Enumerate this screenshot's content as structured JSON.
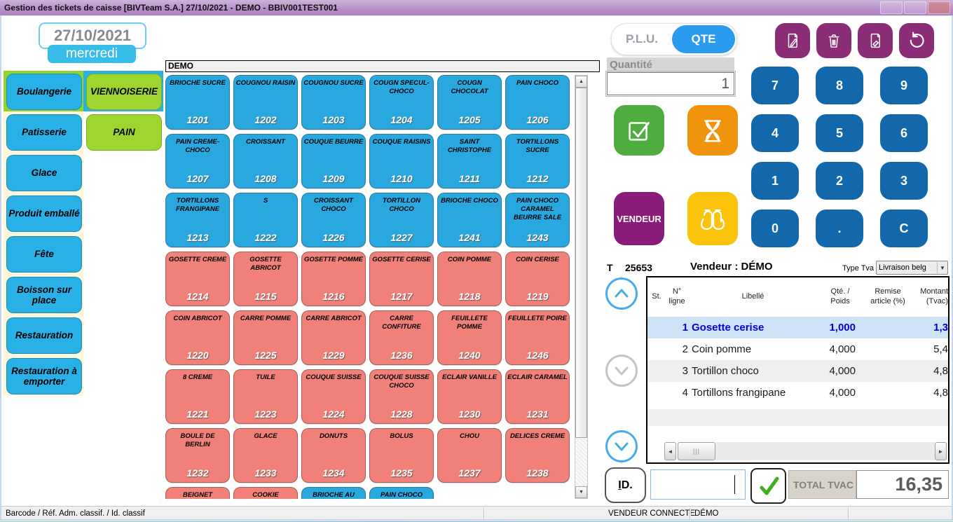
{
  "window": {
    "title": "Gestion des tickets de caisse   [BIVTeam S.A.]   27/10/2021  -  DEMO - BBIV001TEST001"
  },
  "date": {
    "value": "27/10/2021",
    "day": "mercredi"
  },
  "categories": {
    "items": [
      {
        "label": "Boulangerie",
        "color": "blue",
        "backdrop": "green"
      },
      {
        "label": "VIENNOISERIE",
        "color": "green",
        "backdrop": "blue"
      },
      {
        "label": "Patisserie",
        "color": "blue",
        "backdrop": "cream"
      },
      {
        "label": "PAIN",
        "color": "green",
        "backdrop": "none"
      },
      {
        "label": "Glace",
        "color": "blue",
        "backdrop": "cream"
      },
      {
        "label": "Produit emballé",
        "color": "blue",
        "backdrop": "cream"
      },
      {
        "label": "Fête",
        "color": "blue",
        "backdrop": "cream"
      },
      {
        "label": "Boisson sur place",
        "color": "blue",
        "backdrop": "cream"
      },
      {
        "label": "Restauration",
        "color": "blue",
        "backdrop": "cream"
      },
      {
        "label": "Restauration à emporter",
        "color": "blue",
        "backdrop": "cream"
      }
    ]
  },
  "grid": {
    "header": "DEMO",
    "items": [
      {
        "label": "BRIOCHE SUCRE",
        "code": "1201",
        "color": "blue"
      },
      {
        "label": "COUGNOU RAISIN",
        "code": "1202",
        "color": "blue"
      },
      {
        "label": "COUGNOU SUCRE",
        "code": "1203",
        "color": "blue"
      },
      {
        "label": "COUGN SPECUL-CHOCO",
        "code": "1204",
        "color": "blue"
      },
      {
        "label": "COUGN CHOCOLAT",
        "code": "1205",
        "color": "blue"
      },
      {
        "label": "PAIN CHOCO",
        "code": "1206",
        "color": "blue"
      },
      {
        "label": "PAIN CREME-CHOCO",
        "code": "1207",
        "color": "blue"
      },
      {
        "label": "CROISSANT",
        "code": "1208",
        "color": "blue"
      },
      {
        "label": "COUQUE BEURRE",
        "code": "1209",
        "color": "blue"
      },
      {
        "label": "COUQUE RAISINS",
        "code": "1210",
        "color": "blue"
      },
      {
        "label": "SAINT CHRISTOPHE",
        "code": "1211",
        "color": "blue"
      },
      {
        "label": "TORTILLONS SUCRE",
        "code": "1212",
        "color": "blue"
      },
      {
        "label": "TORTILLONS FRANGIPANE",
        "code": "1213",
        "color": "blue"
      },
      {
        "label": "S",
        "code": "1222",
        "color": "blue"
      },
      {
        "label": "CROISSANT CHOCO",
        "code": "1226",
        "color": "blue"
      },
      {
        "label": "TORTILLON CHOCO",
        "code": "1227",
        "color": "blue"
      },
      {
        "label": "BRIOCHE CHOCO",
        "code": "1241",
        "color": "blue"
      },
      {
        "label": "PAIN CHOCO CARAMEL BEURRE SALE",
        "code": "1243",
        "color": "blue"
      },
      {
        "label": "GOSETTE CREME",
        "code": "1214",
        "color": "salmon"
      },
      {
        "label": "GOSETTE ABRICOT",
        "code": "1215",
        "color": "salmon"
      },
      {
        "label": "GOSETTE POMME",
        "code": "1216",
        "color": "salmon"
      },
      {
        "label": "GOSETTE CERISE",
        "code": "1217",
        "color": "salmon"
      },
      {
        "label": "COIN POMME",
        "code": "1218",
        "color": "salmon"
      },
      {
        "label": "COIN CERISE",
        "code": "1219",
        "color": "salmon"
      },
      {
        "label": "COIN ABRICOT",
        "code": "1220",
        "color": "salmon"
      },
      {
        "label": "CARRE POMME",
        "code": "1225",
        "color": "salmon"
      },
      {
        "label": "CARRE ABRICOT",
        "code": "1229",
        "color": "salmon"
      },
      {
        "label": "CARRE CONFITURE",
        "code": "1236",
        "color": "salmon"
      },
      {
        "label": "FEUILLETE POMME",
        "code": "1240",
        "color": "salmon"
      },
      {
        "label": "FEUILLETE POIRE",
        "code": "1246",
        "color": "salmon"
      },
      {
        "label": "8 CREME",
        "code": "1221",
        "color": "salmon"
      },
      {
        "label": "TUILE",
        "code": "1223",
        "color": "salmon"
      },
      {
        "label": "COUQUE SUISSE",
        "code": "1224",
        "color": "salmon"
      },
      {
        "label": "COUQUE SUISSE CHOCO",
        "code": "1228",
        "color": "salmon"
      },
      {
        "label": "ECLAIR VANILLE",
        "code": "1230",
        "color": "salmon"
      },
      {
        "label": "ECLAIR CARAMEL",
        "code": "1231",
        "color": "salmon"
      },
      {
        "label": "BOULE DE BERLIN",
        "code": "1232",
        "color": "salmon"
      },
      {
        "label": "GLACE",
        "code": "1233",
        "color": "salmon"
      },
      {
        "label": "DONUTS",
        "code": "1234",
        "color": "salmon"
      },
      {
        "label": "BOLUS",
        "code": "1235",
        "color": "salmon"
      },
      {
        "label": "CHOU",
        "code": "1237",
        "color": "salmon"
      },
      {
        "label": "DELICES CREME",
        "code": "1238",
        "color": "salmon"
      },
      {
        "label": "BEIGNET",
        "code": "",
        "color": "salmon"
      },
      {
        "label": "COOKIE",
        "code": "",
        "color": "salmon"
      },
      {
        "label": "BRIOCHE AU",
        "code": "",
        "color": "blue"
      },
      {
        "label": "PAIN CHOCO",
        "code": "",
        "color": "blue"
      }
    ]
  },
  "plu": {
    "plu_label": "P.L.U.",
    "qte_label": "QTE"
  },
  "quantity": {
    "label": "Quantité",
    "value": "1"
  },
  "keypad": {
    "keys": [
      "7",
      "8",
      "9",
      "4",
      "5",
      "6",
      "1",
      "2",
      "3",
      "0",
      ".",
      "C"
    ]
  },
  "actions": {
    "vendeur_label": "VENDEUR"
  },
  "ticket": {
    "t_label": "T",
    "number": "25653",
    "vendor_label": "Vendeur : DÉMO",
    "tva_label": "Type Tva",
    "tva_value": "Livraison belg"
  },
  "table": {
    "headers": {
      "st": "St.",
      "num": "N°\nligne",
      "libelle": "Libellé",
      "qty": "Qté. /\nPoids",
      "remise": "Remise\narticle (%)",
      "montant": "Montant (Tvac)"
    },
    "rows": [
      {
        "st": "",
        "num": "1",
        "libelle": "Gosette cerise",
        "qty": "1,000",
        "remise": "",
        "montant": "1,3",
        "selected": true
      },
      {
        "st": "",
        "num": "2",
        "libelle": "Coin pomme",
        "qty": "4,000",
        "remise": "",
        "montant": "5,4",
        "selected": false
      },
      {
        "st": "",
        "num": "3",
        "libelle": "Tortillon choco",
        "qty": "4,000",
        "remise": "",
        "montant": "4,8",
        "selected": false
      },
      {
        "st": "",
        "num": "4",
        "libelle": "Tortillons frangipane",
        "qty": "4,000",
        "remise": "",
        "montant": "4,8",
        "selected": false
      }
    ]
  },
  "footer": {
    "id_underline": "I",
    "id_rest": "D.",
    "total_label": "TOTAL TVAC",
    "total_value": "16,35"
  },
  "statusbar": {
    "left": "Barcode / Réf. Adm. classif. / Id. classif",
    "vendor": "VENDEUR CONNECTE",
    "vendor_name": "DÉMO"
  },
  "colors": {
    "titlebar": "#b991c9",
    "category_blue": "#29b0e6",
    "category_green": "#9ed62f",
    "product_blue": "#29a8e0",
    "product_salmon": "#f08078",
    "keypad_blue": "#1368ac",
    "purple_button": "#8b2c76",
    "validate_green": "#4fae3f",
    "wait_orange": "#f0930d",
    "vendeur_purple": "#8a1b79",
    "search_yellow": "#fcc30d",
    "qte_blue": "#2b9bf0",
    "selected_row_bg": "#cfe3f6",
    "selected_row_text": "#0202d8"
  }
}
